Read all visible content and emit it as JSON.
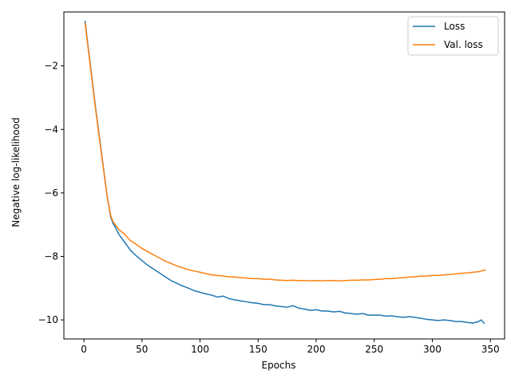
{
  "chart_data": {
    "type": "line",
    "title": "",
    "xlabel": "Epochs",
    "ylabel": "Negative log-likelihood",
    "xlim": [
      -17.25,
      362.25
    ],
    "ylim": [
      -10.6,
      -0.3
    ],
    "xticks": [
      0,
      50,
      100,
      150,
      200,
      250,
      300,
      350
    ],
    "yticks": [
      -2,
      -4,
      -6,
      -8,
      -10
    ],
    "grid": false,
    "legend_position": "top-right",
    "series": [
      {
        "name": "Loss",
        "color": "#1f77b4",
        "x": [
          1,
          3,
          6,
          10,
          15,
          20,
          23,
          25,
          28,
          30,
          35,
          40,
          45,
          50,
          55,
          60,
          65,
          70,
          75,
          80,
          85,
          90,
          95,
          100,
          105,
          110,
          115,
          120,
          125,
          130,
          135,
          140,
          145,
          150,
          155,
          160,
          165,
          170,
          175,
          180,
          185,
          190,
          195,
          200,
          205,
          210,
          215,
          220,
          225,
          230,
          235,
          240,
          245,
          250,
          255,
          260,
          265,
          270,
          275,
          280,
          285,
          290,
          295,
          300,
          305,
          310,
          315,
          320,
          325,
          330,
          335,
          340,
          342,
          345
        ],
        "y": [
          -0.58,
          -1.2,
          -2.1,
          -3.3,
          -4.7,
          -6.1,
          -6.75,
          -6.95,
          -7.15,
          -7.3,
          -7.55,
          -7.8,
          -7.98,
          -8.13,
          -8.28,
          -8.4,
          -8.52,
          -8.64,
          -8.76,
          -8.85,
          -8.93,
          -9.0,
          -9.08,
          -9.13,
          -9.18,
          -9.22,
          -9.28,
          -9.25,
          -9.33,
          -9.37,
          -9.4,
          -9.43,
          -9.46,
          -9.48,
          -9.52,
          -9.52,
          -9.56,
          -9.58,
          -9.6,
          -9.55,
          -9.63,
          -9.66,
          -9.7,
          -9.68,
          -9.72,
          -9.72,
          -9.75,
          -9.73,
          -9.78,
          -9.8,
          -9.82,
          -9.8,
          -9.85,
          -9.85,
          -9.85,
          -9.88,
          -9.87,
          -9.9,
          -9.92,
          -9.9,
          -9.92,
          -9.95,
          -9.98,
          -10.0,
          -10.02,
          -10.0,
          -10.02,
          -10.05,
          -10.05,
          -10.08,
          -10.1,
          -10.05,
          -10.0,
          -10.12
        ]
      },
      {
        "name": "Val. loss",
        "color": "#ff7f0e",
        "x": [
          1,
          3,
          6,
          10,
          15,
          20,
          23,
          25,
          28,
          30,
          35,
          40,
          45,
          50,
          55,
          60,
          65,
          70,
          75,
          80,
          85,
          90,
          95,
          100,
          105,
          110,
          115,
          120,
          125,
          130,
          135,
          140,
          145,
          150,
          155,
          160,
          165,
          170,
          175,
          180,
          185,
          190,
          195,
          200,
          205,
          210,
          215,
          220,
          225,
          230,
          235,
          240,
          245,
          250,
          255,
          260,
          265,
          270,
          275,
          280,
          285,
          290,
          295,
          300,
          305,
          310,
          315,
          320,
          325,
          330,
          335,
          340,
          343,
          346
        ],
        "y": [
          -0.65,
          -1.25,
          -2.15,
          -3.35,
          -4.75,
          -6.1,
          -6.7,
          -6.9,
          -7.05,
          -7.15,
          -7.3,
          -7.5,
          -7.62,
          -7.75,
          -7.85,
          -7.95,
          -8.05,
          -8.15,
          -8.22,
          -8.3,
          -8.36,
          -8.42,
          -8.46,
          -8.5,
          -8.54,
          -8.58,
          -8.6,
          -8.62,
          -8.64,
          -8.65,
          -8.67,
          -8.68,
          -8.7,
          -8.7,
          -8.72,
          -8.72,
          -8.74,
          -8.75,
          -8.76,
          -8.75,
          -8.76,
          -8.76,
          -8.77,
          -8.76,
          -8.77,
          -8.76,
          -8.76,
          -8.77,
          -8.76,
          -8.75,
          -8.75,
          -8.74,
          -8.74,
          -8.73,
          -8.72,
          -8.7,
          -8.7,
          -8.68,
          -8.67,
          -8.65,
          -8.64,
          -8.62,
          -8.62,
          -8.6,
          -8.6,
          -8.58,
          -8.57,
          -8.55,
          -8.53,
          -8.52,
          -8.5,
          -8.48,
          -8.45,
          -8.42
        ]
      }
    ]
  }
}
